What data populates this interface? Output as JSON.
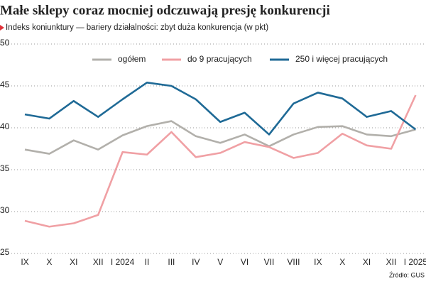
{
  "chart_data": {
    "type": "line",
    "title": "Małe sklepy coraz mocniej odczuwają presję konkurencji",
    "subtitle": "Indeks koniunktury — bariery działalności: zbyt duża konkurencja (w pkt)",
    "source": "Źródło: GUS",
    "categories": [
      "IX",
      "X",
      "XI",
      "XII",
      "I 2024",
      "II",
      "III",
      "IV",
      "V",
      "VI",
      "VII",
      "VIII",
      "IX",
      "X",
      "XI",
      "XII",
      "I 2025"
    ],
    "series": [
      {
        "name": "ogółem",
        "color": "#b2b0ab",
        "values": [
          37.4,
          36.9,
          38.5,
          37.4,
          39.1,
          40.2,
          40.8,
          39.0,
          38.2,
          39.2,
          37.8,
          39.2,
          40.1,
          40.2,
          39.2,
          39.0,
          39.8
        ]
      },
      {
        "name": "do 9 pracujących",
        "color": "#f0a0a4",
        "values": [
          28.9,
          28.2,
          28.6,
          29.6,
          37.1,
          36.8,
          39.5,
          36.5,
          37.0,
          38.3,
          37.7,
          36.4,
          37.0,
          39.3,
          37.9,
          37.5,
          43.9
        ]
      },
      {
        "name": "250 i więcej pracujących",
        "color": "#1f6a96",
        "values": [
          41.6,
          41.1,
          43.2,
          41.3,
          43.4,
          45.4,
          45.0,
          43.4,
          40.7,
          41.8,
          39.2,
          42.9,
          44.2,
          43.5,
          41.3,
          42.0,
          39.8
        ]
      }
    ],
    "ylim": [
      25,
      50
    ],
    "yticks": [
      25,
      30,
      35,
      40,
      45,
      50
    ],
    "grid": true
  }
}
